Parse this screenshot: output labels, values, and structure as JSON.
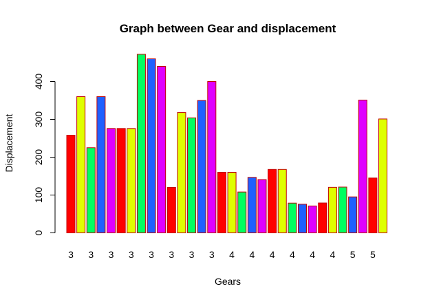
{
  "chart_data": {
    "type": "bar",
    "title": "Graph between Gear and displacement",
    "xlabel": "Gears",
    "ylabel": "Displacement",
    "ylim": [
      0,
      480
    ],
    "yticks": [
      0,
      100,
      200,
      300,
      400
    ],
    "grid": false,
    "bar_border_color": "#C00000",
    "palette": [
      "#FF0000",
      "#DFFF00",
      "#00FF60",
      "#1F60FF",
      "#DF00FF"
    ],
    "values": [
      258,
      360,
      225,
      360,
      275.8,
      275.8,
      275.8,
      472,
      460,
      440,
      120.1,
      318,
      304,
      350,
      400,
      160,
      160,
      108,
      146.7,
      140.8,
      167.6,
      167.6,
      78.7,
      75.7,
      71.1,
      79,
      120.3,
      121,
      95.1,
      351,
      145,
      301
    ],
    "x_tick_labels": [
      "3",
      "3",
      "3",
      "3",
      "3",
      "3",
      "3",
      "3",
      "4",
      "4",
      "4",
      "4",
      "4",
      "4",
      "5",
      "5"
    ]
  }
}
